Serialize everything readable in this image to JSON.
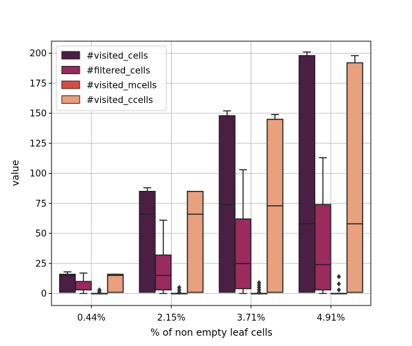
{
  "chart_data": {
    "type": "box",
    "xlabel": "% of non empty leaf cells",
    "ylabel": "value",
    "ylim": [
      -10,
      210
    ],
    "yticks": [
      0,
      25,
      50,
      75,
      100,
      125,
      150,
      175,
      200
    ],
    "grid": true,
    "legend_position": "top-left",
    "categories": [
      "0.44%",
      "2.15%",
      "3.71%",
      "4.91%"
    ],
    "series": [
      {
        "name": "#visited_cells",
        "color": "#4a1f43",
        "boxes": [
          {
            "q1": 1,
            "median": 15,
            "q3": 16,
            "whisker_low": 1,
            "whisker_high": 18,
            "outliers": []
          },
          {
            "q1": 1,
            "median": 66,
            "q3": 85,
            "whisker_low": 1,
            "whisker_high": 88,
            "outliers": []
          },
          {
            "q1": 1,
            "median": 74,
            "q3": 148,
            "whisker_low": 1,
            "whisker_high": 152,
            "outliers": []
          },
          {
            "q1": 1,
            "median": 58,
            "q3": 198,
            "whisker_low": 1,
            "whisker_high": 201,
            "outliers": []
          }
        ]
      },
      {
        "name": "#filtered_cells",
        "color": "#9b2a5e",
        "boxes": [
          {
            "q1": 3,
            "median": 3,
            "q3": 10,
            "whisker_low": 0,
            "whisker_high": 17,
            "outliers": []
          },
          {
            "q1": 3,
            "median": 15,
            "q3": 32,
            "whisker_low": 0,
            "whisker_high": 61,
            "outliers": []
          },
          {
            "q1": 4,
            "median": 25,
            "q3": 62,
            "whisker_low": 0,
            "whisker_high": 103,
            "outliers": []
          },
          {
            "q1": 3,
            "median": 24,
            "q3": 74,
            "whisker_low": 0,
            "whisker_high": 113,
            "outliers": []
          }
        ]
      },
      {
        "name": "#visited_mcells",
        "color": "#d94d41",
        "boxes": [
          {
            "q1": 0,
            "median": 0,
            "q3": 0,
            "whisker_low": 0,
            "whisker_high": 0,
            "outliers": [
              1,
              2,
              3
            ]
          },
          {
            "q1": 0,
            "median": 0,
            "q3": 0,
            "whisker_low": 0,
            "whisker_high": 0,
            "outliers": [
              1,
              3,
              5
            ]
          },
          {
            "q1": 0,
            "median": 0,
            "q3": 0,
            "whisker_low": 0,
            "whisker_high": 0,
            "outliers": [
              1,
              3,
              5,
              7,
              9
            ]
          },
          {
            "q1": 0,
            "median": 0,
            "q3": 0,
            "whisker_low": 0,
            "whisker_high": 0,
            "outliers": [
              3,
              8,
              14
            ]
          }
        ]
      },
      {
        "name": "#visited_ccells",
        "color": "#e8a07d",
        "boxes": [
          {
            "q1": 1,
            "median": 15,
            "q3": 16,
            "whisker_low": 1,
            "whisker_high": 16,
            "outliers": []
          },
          {
            "q1": 1,
            "median": 66,
            "q3": 85,
            "whisker_low": 1,
            "whisker_high": 85,
            "outliers": []
          },
          {
            "q1": 1,
            "median": 73,
            "q3": 145,
            "whisker_low": 1,
            "whisker_high": 149,
            "outliers": []
          },
          {
            "q1": 1,
            "median": 58,
            "q3": 192,
            "whisker_low": 1,
            "whisker_high": 198,
            "outliers": []
          }
        ]
      }
    ]
  }
}
